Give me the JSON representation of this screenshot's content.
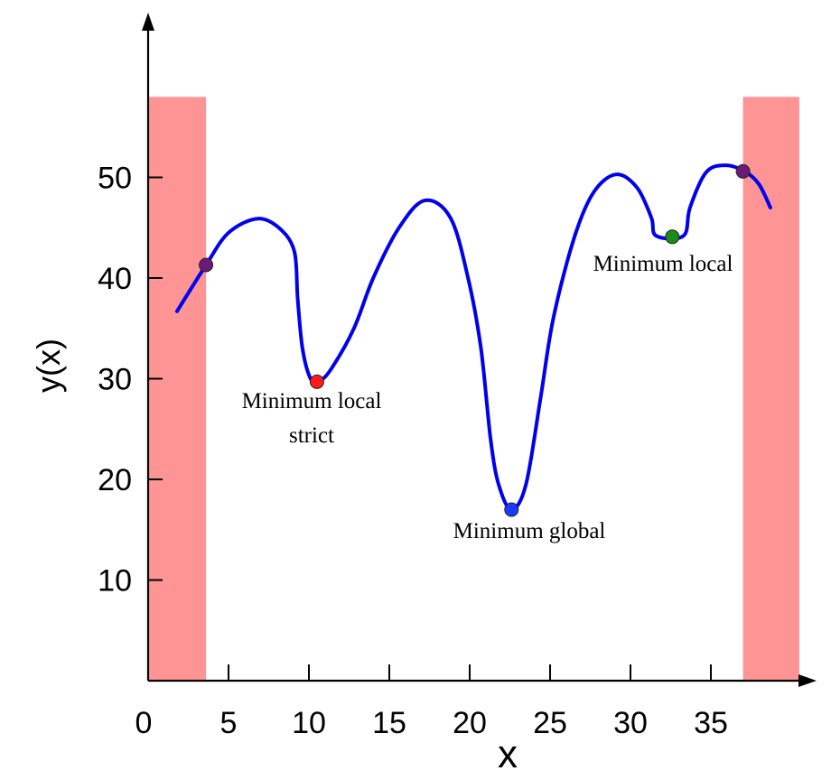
{
  "chart_data": {
    "type": "line",
    "title": "",
    "xlabel": "x",
    "ylabel": "y(x)",
    "xlim": [
      0,
      40.5
    ],
    "ylim": [
      0,
      62
    ],
    "xticks": [
      0,
      5,
      10,
      15,
      20,
      25,
      30,
      35
    ],
    "yticks": [
      10,
      20,
      30,
      40,
      50
    ],
    "grid": false,
    "series": [
      {
        "color": "#0000ee",
        "points": [
          [
            1.8,
            36.7
          ],
          [
            3.6,
            41.3
          ],
          [
            5.0,
            44.5
          ],
          [
            6.8,
            45.9
          ],
          [
            8.2,
            44.9
          ],
          [
            9.1,
            42.6
          ],
          [
            9.3,
            38.0
          ],
          [
            9.6,
            33.0
          ],
          [
            10.1,
            30.0
          ],
          [
            10.6,
            29.7
          ],
          [
            11.4,
            31.0
          ],
          [
            12.8,
            35.0
          ],
          [
            14.0,
            40.0
          ],
          [
            15.6,
            45.0
          ],
          [
            17.2,
            47.7
          ],
          [
            18.8,
            46.0
          ],
          [
            19.9,
            40.0
          ],
          [
            20.7,
            33.0
          ],
          [
            21.3,
            24.0
          ],
          [
            21.8,
            19.5
          ],
          [
            22.6,
            17.0
          ],
          [
            23.5,
            19.5
          ],
          [
            24.4,
            28.0
          ],
          [
            25.2,
            36.0
          ],
          [
            26.5,
            44.0
          ],
          [
            27.7,
            48.5
          ],
          [
            29.1,
            50.3
          ],
          [
            30.4,
            49.0
          ],
          [
            31.3,
            46.0
          ],
          [
            31.6,
            44.2
          ],
          [
            33.3,
            44.2
          ],
          [
            33.7,
            47.0
          ],
          [
            34.7,
            50.5
          ],
          [
            35.9,
            51.2
          ],
          [
            37.1,
            50.6
          ],
          [
            38.0,
            49.3
          ],
          [
            38.7,
            47.0
          ]
        ]
      }
    ],
    "shaded_regions": [
      {
        "x": [
          0,
          3.6
        ],
        "y": [
          0,
          58
        ],
        "color": "#ff9494"
      },
      {
        "x": [
          37.0,
          40.5
        ],
        "y": [
          0,
          58
        ],
        "color": "#ff9494"
      }
    ],
    "markers": [
      {
        "x": 3.6,
        "y": 41.3,
        "color": "#6b1a78"
      },
      {
        "x": 10.5,
        "y": 29.7,
        "color": "#ff1a1a",
        "label": "Minimum local strict"
      },
      {
        "x": 22.6,
        "y": 17.0,
        "color": "#1a3bff",
        "label": "Minimum global"
      },
      {
        "x": 32.6,
        "y": 44.1,
        "color": "#1a8c1a",
        "label": "Minimum local"
      },
      {
        "x": 37.0,
        "y": 50.6,
        "color": "#6b1a78"
      }
    ]
  }
}
